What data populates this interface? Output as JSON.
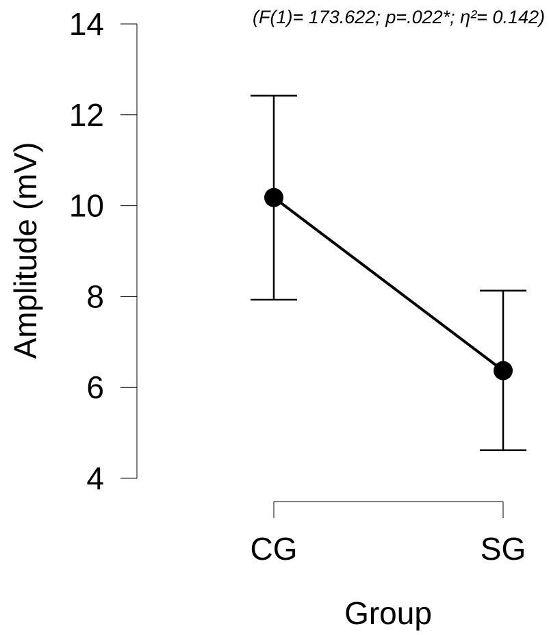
{
  "annotation": "(F(1)= 173.622; p=.022*; η²= 0.142)",
  "chart_data": {
    "type": "line",
    "title": "",
    "xlabel": "Group",
    "ylabel": "Amplitude (mV)",
    "categories": [
      "CG",
      "SG"
    ],
    "series": [
      {
        "values": [
          10.18,
          6.37
        ],
        "error_low": [
          7.93,
          4.62
        ],
        "error_high": [
          12.42,
          8.13
        ]
      }
    ],
    "ylim": [
      4,
      14
    ],
    "yticks": [
      "4",
      "6",
      "8",
      "10",
      "12",
      "14"
    ],
    "grid": false,
    "colors": {
      "line": "#000000",
      "point": "#000000",
      "axis": "#000000"
    }
  }
}
